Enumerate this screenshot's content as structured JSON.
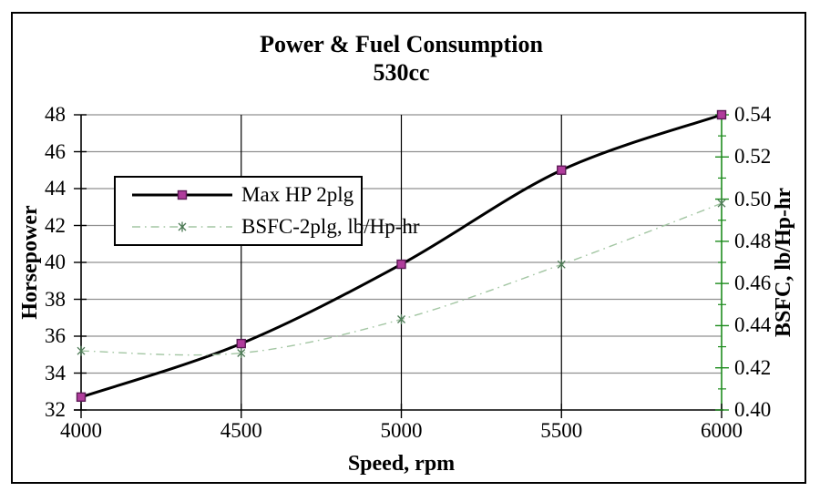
{
  "chart": {
    "title": "Power & Fuel Consumption",
    "subtitle": "530cc",
    "axes": {
      "x": {
        "title": "Speed, rpm",
        "ticks": [
          "4000",
          "4500",
          "5000",
          "5500",
          "6000"
        ],
        "range": [
          4000,
          6000
        ]
      },
      "y_left": {
        "title": "Horsepower",
        "ticks": [
          "32",
          "34",
          "36",
          "38",
          "40",
          "42",
          "44",
          "46",
          "48"
        ],
        "range": [
          32,
          48
        ]
      },
      "y_right": {
        "title": "BSFC, lb/Hp-hr",
        "ticks": [
          "0.40",
          "0.42",
          "0.44",
          "0.46",
          "0.48",
          "0.50",
          "0.52",
          "0.54"
        ],
        "range": [
          0.4,
          0.54
        ],
        "minor_step": 0.01
      }
    },
    "colors": {
      "grid_horizontal": "#909090",
      "grid_vertical": "#000000",
      "axis_left": "#000000",
      "axis_bottom": "#000000",
      "axis_right": "#1e8c1e",
      "text": "#000000"
    }
  },
  "chart_data": {
    "type": "line",
    "title": "Power & Fuel Consumption 530cc",
    "xlabel": "Speed, rpm",
    "ylabel_left": "Horsepower",
    "ylabel_right": "BSFC, lb/Hp-hr",
    "x": [
      4000,
      4500,
      5000,
      5500,
      6000
    ],
    "xlim": [
      4000,
      6000
    ],
    "ylim_left": [
      32,
      48
    ],
    "ylim_right": [
      0.4,
      0.54
    ],
    "grid": true,
    "legend_position": "upper-left-inside",
    "smoothed_lines": true,
    "series": [
      {
        "name": "Max HP 2plg",
        "axis": "left",
        "values": [
          32.7,
          35.6,
          39.9,
          45.0,
          48.0
        ],
        "line_color": "#000000",
        "line_width": 3,
        "line_style": "solid",
        "marker": "square",
        "marker_fill": "#b03c9c",
        "marker_stroke": "#5c1a56"
      },
      {
        "name": "BSFC-2plg, lb/Hp-hr",
        "axis": "right",
        "values": [
          0.428,
          0.427,
          0.443,
          0.469,
          0.498
        ],
        "line_color": "#a3c6a3",
        "line_width": 1.4,
        "line_style": "dash-dot",
        "marker": "star",
        "marker_fill": "#4c7a55",
        "marker_stroke": "#4c7a55"
      }
    ]
  }
}
